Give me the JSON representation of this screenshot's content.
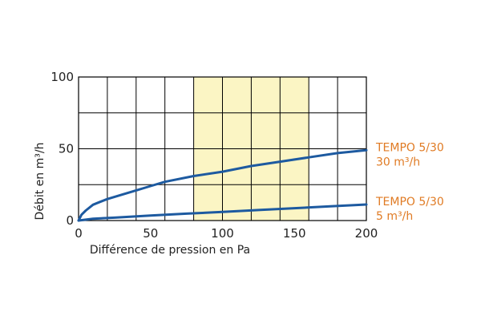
{
  "chart_data": {
    "type": "line",
    "xlabel": "Différence de pression en Pa",
    "ylabel": "Débit en m³/h",
    "xlim": [
      0,
      200
    ],
    "ylim": [
      0,
      100
    ],
    "x_ticks": [
      "0",
      "50",
      "100",
      "150",
      "200"
    ],
    "y_ticks": [
      "0",
      "50",
      "100"
    ],
    "grid": true,
    "highlight_band": {
      "x_from": 80,
      "x_to": 160,
      "color": "#fbf5c4"
    },
    "series": [
      {
        "name": "TEMPO 5/30 30 m³/h",
        "label_lines": [
          "TEMPO 5/30",
          "30 m³/h"
        ],
        "color": "#1d5aa0",
        "label_color": "#e07b24",
        "points": [
          [
            0,
            0
          ],
          [
            2,
            4
          ],
          [
            5,
            7
          ],
          [
            10,
            11
          ],
          [
            15,
            13
          ],
          [
            20,
            15
          ],
          [
            30,
            18
          ],
          [
            40,
            21
          ],
          [
            50,
            24
          ],
          [
            60,
            27
          ],
          [
            80,
            31
          ],
          [
            100,
            34
          ],
          [
            120,
            38
          ],
          [
            140,
            41
          ],
          [
            160,
            44
          ],
          [
            180,
            47
          ],
          [
            200,
            49
          ]
        ]
      },
      {
        "name": "TEMPO 5/30 5 m³/h",
        "label_lines": [
          "TEMPO 5/30",
          "5 m³/h"
        ],
        "color": "#1d5aa0",
        "label_color": "#e07b24",
        "points": [
          [
            0,
            0
          ],
          [
            5,
            0.6
          ],
          [
            10,
            1.3
          ],
          [
            25,
            2
          ],
          [
            50,
            3.5
          ],
          [
            75,
            4.8
          ],
          [
            100,
            6
          ],
          [
            125,
            7.3
          ],
          [
            150,
            8.6
          ],
          [
            175,
            9.9
          ],
          [
            200,
            11.2
          ]
        ]
      }
    ]
  }
}
